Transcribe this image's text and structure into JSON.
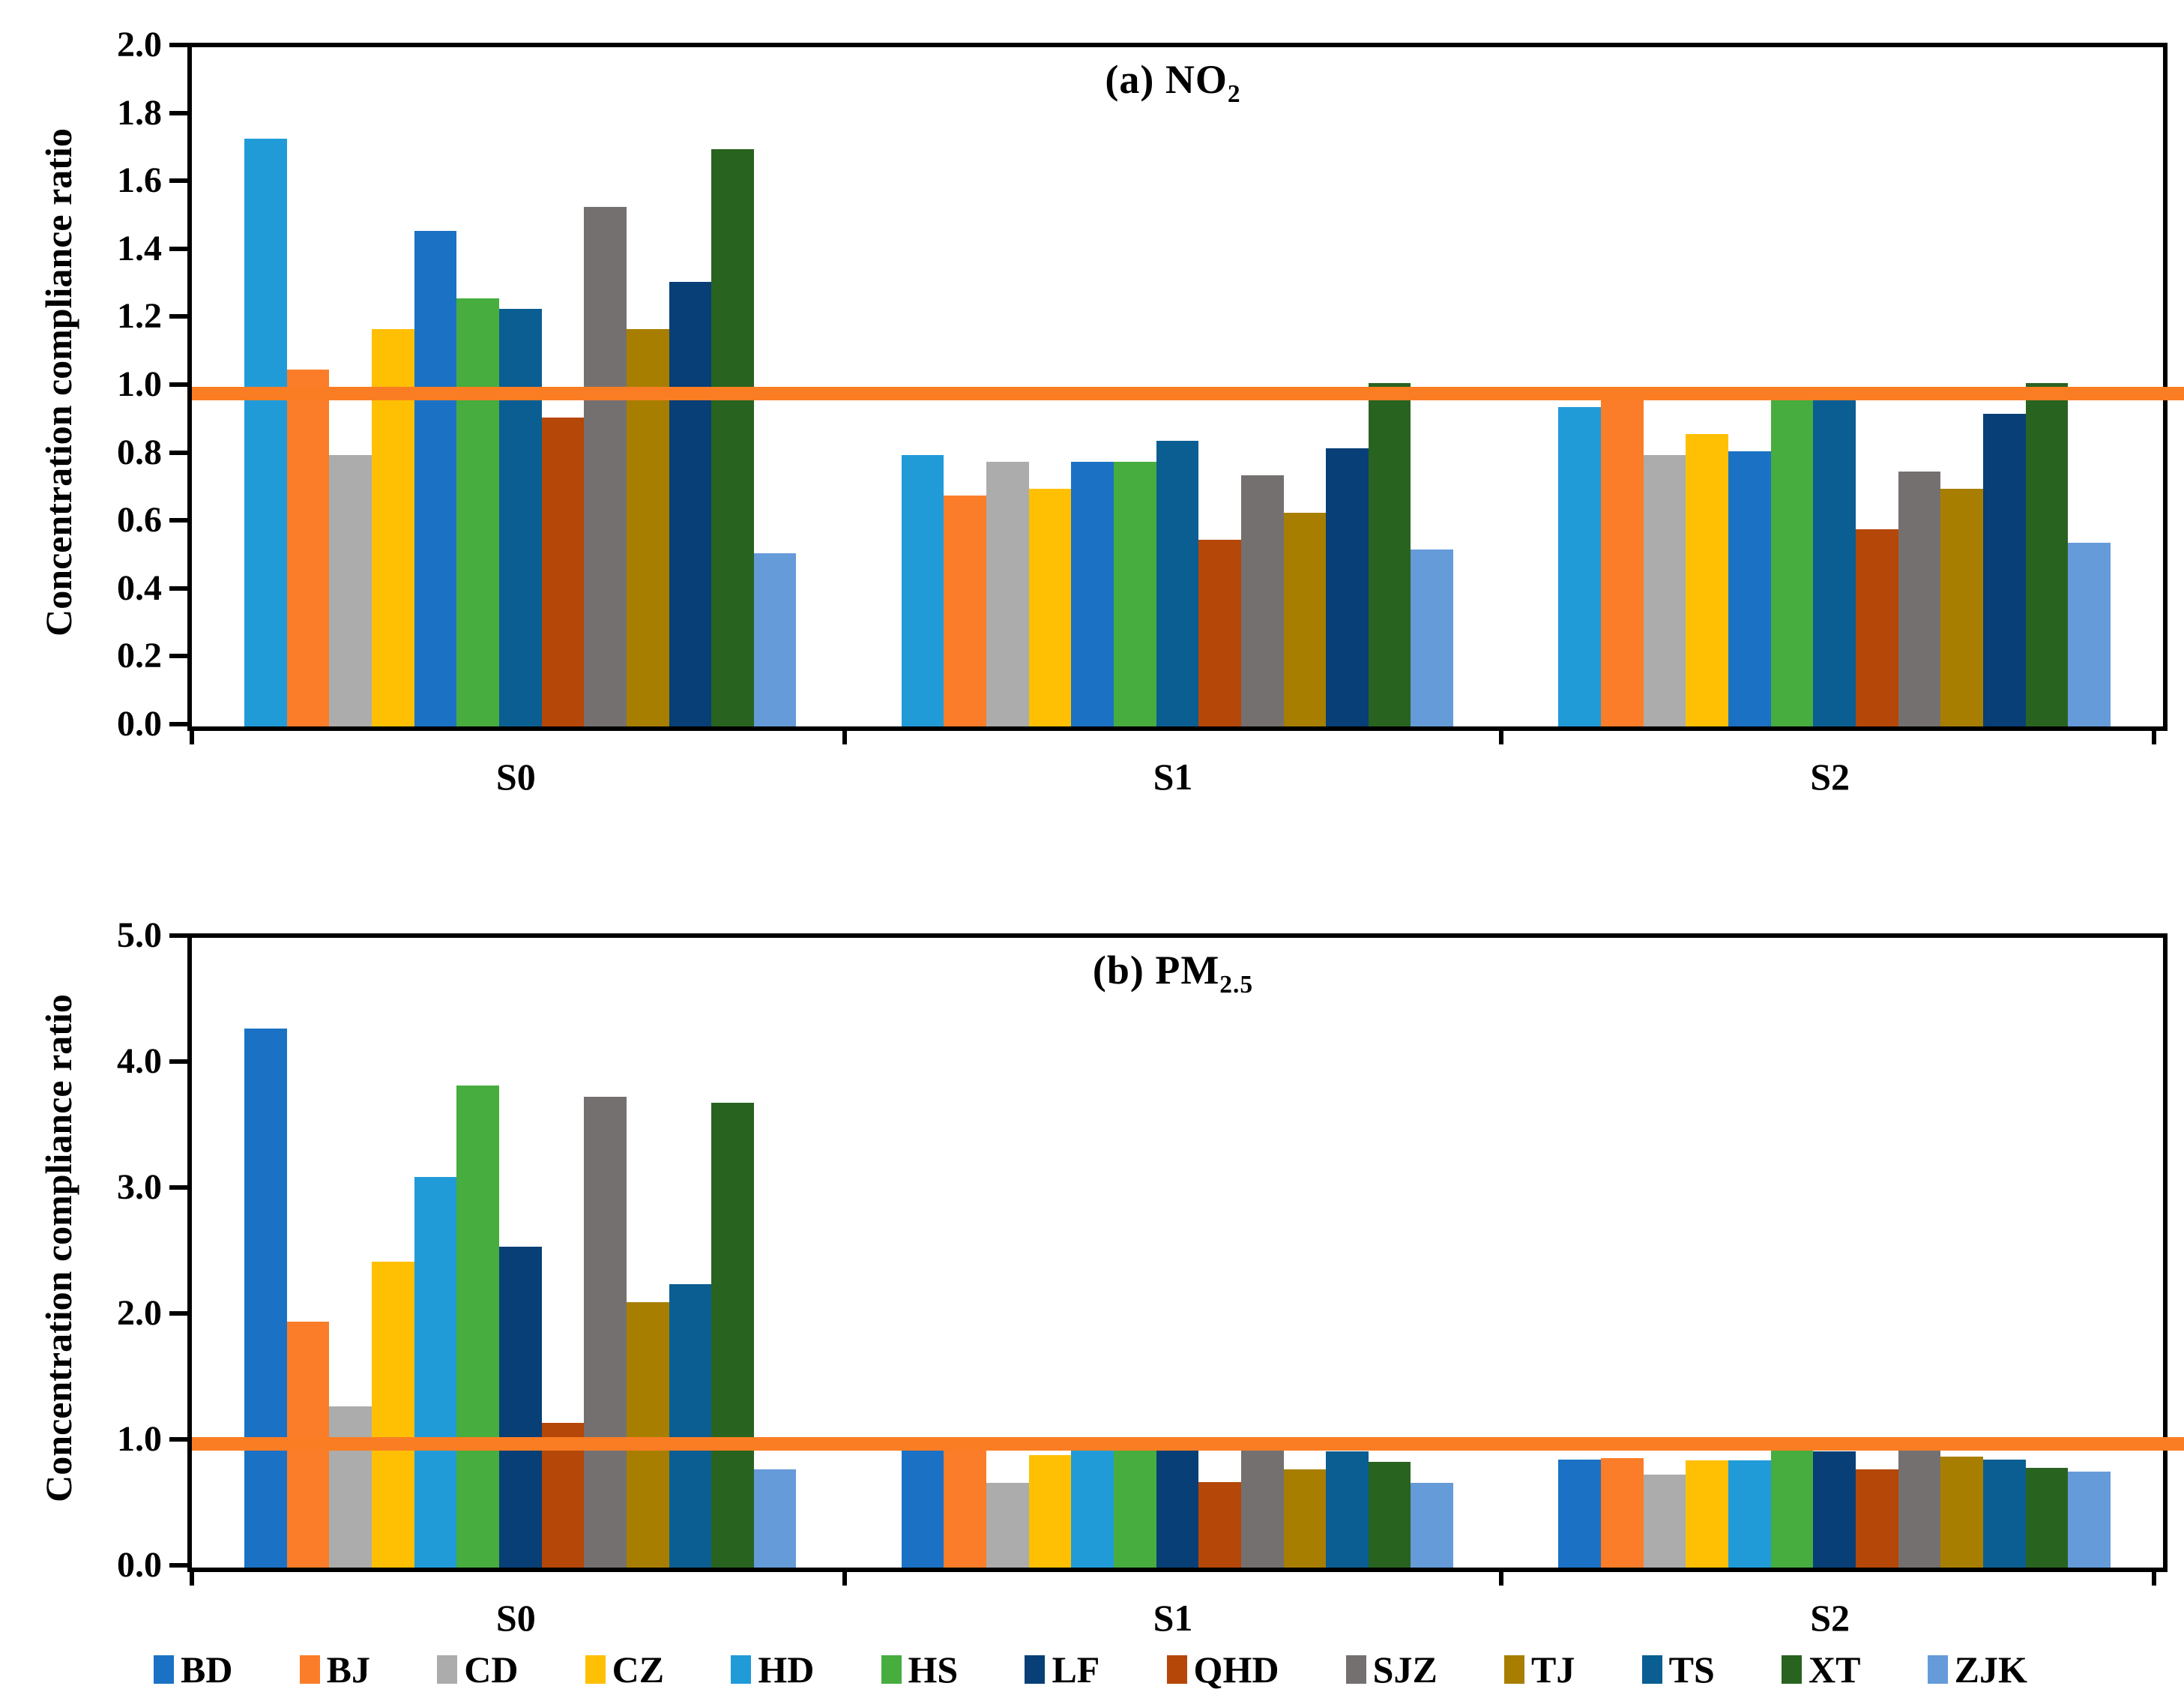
{
  "figure": {
    "background": "#ffffff",
    "y_axis_label": "Concentration compliance ratio",
    "reference_line": {
      "value": 0.98,
      "color": "#FB7D23"
    }
  },
  "legend": [
    {
      "city": "BD",
      "label": "BD",
      "color": "#1B72C4"
    },
    {
      "city": "BJ",
      "label": "BJ",
      "color": "#FB7D29"
    },
    {
      "city": "CD",
      "label": "CD",
      "color": "#ACACAC"
    },
    {
      "city": "CZ",
      "label": "CZ",
      "color": "#FFC003"
    },
    {
      "city": "HD",
      "label": "HD",
      "color": "#209BD8"
    },
    {
      "city": "HS",
      "label": "HS",
      "color": "#47AD3F"
    },
    {
      "city": "LF",
      "label": "LF",
      "color": "#073F76"
    },
    {
      "city": "QHD",
      "label": "QHD",
      "color": "#B54708"
    },
    {
      "city": "SJZ",
      "label": "SJZ",
      "color": "#757070"
    },
    {
      "city": "TJ",
      "label": "TJ",
      "color": "#A87E00"
    },
    {
      "city": "TS",
      "label": "TS",
      "color": "#0A5E92"
    },
    {
      "city": "XT",
      "label": "XT",
      "color": "#296320"
    },
    {
      "city": "ZJK",
      "label": "ZJK",
      "color": "#659BD9"
    }
  ],
  "chart_data": [
    {
      "type": "bar",
      "panel": "a",
      "title_prefix": "(a) NO",
      "title_sub": "2",
      "ylabel": "Concentration compliance ratio",
      "ylim": [
        0.0,
        2.0
      ],
      "ytick_labels": [
        "2.0",
        "1.8",
        "1.6",
        "1.4",
        "1.2",
        "1.0",
        "0.8",
        "0.6",
        "0.4",
        "0.2",
        "0.0"
      ],
      "categories": [
        "S0",
        "S1",
        "S2"
      ],
      "grid": false,
      "reference_line_value": 0.98,
      "bar_order": [
        "HD",
        "BJ",
        "CD",
        "CZ",
        "BD",
        "HS",
        "TS",
        "QHD",
        "SJZ",
        "TJ",
        "LF",
        "XT",
        "ZJK"
      ],
      "groups": [
        {
          "label": "S0",
          "values": [
            1.73,
            1.05,
            0.8,
            1.17,
            1.46,
            1.26,
            1.23,
            0.91,
            1.53,
            1.17,
            1.31,
            1.7,
            0.51
          ]
        },
        {
          "label": "S1",
          "values": [
            0.8,
            0.68,
            0.78,
            0.7,
            0.78,
            0.78,
            0.84,
            0.55,
            0.74,
            0.63,
            0.82,
            1.01,
            0.52
          ]
        },
        {
          "label": "S2",
          "values": [
            0.94,
            0.99,
            0.8,
            0.86,
            0.81,
            0.96,
            1.0,
            0.58,
            0.75,
            0.7,
            0.92,
            1.01,
            0.54
          ]
        }
      ]
    },
    {
      "type": "bar",
      "panel": "b",
      "title_prefix": "(b) PM",
      "title_sub": "2.5",
      "ylabel": "Concentration compliance ratio",
      "ylim": [
        0.0,
        5.0
      ],
      "ytick_labels": [
        "5.0",
        "4.0",
        "3.0",
        "2.0",
        "1.0",
        "0.0"
      ],
      "categories": [
        "S0",
        "S1",
        "S2"
      ],
      "grid": false,
      "reference_line_value": 0.98,
      "bar_order": [
        "BD",
        "BJ",
        "CD",
        "CZ",
        "HD",
        "HS",
        "LF",
        "QHD",
        "SJZ",
        "TJ",
        "TS",
        "XT",
        "ZJK"
      ],
      "groups": [
        {
          "label": "S0",
          "values": [
            4.28,
            1.95,
            1.28,
            2.43,
            3.1,
            3.83,
            2.55,
            1.15,
            3.74,
            2.11,
            2.25,
            3.69,
            0.78
          ]
        },
        {
          "label": "S1",
          "values": [
            0.97,
            1.0,
            0.67,
            0.89,
            0.94,
            1.0,
            1.0,
            0.68,
            1.01,
            0.78,
            0.92,
            0.84,
            0.67
          ]
        },
        {
          "label": "S2",
          "values": [
            0.86,
            0.87,
            0.74,
            0.85,
            0.85,
            0.93,
            0.92,
            0.78,
            0.93,
            0.88,
            0.86,
            0.79,
            0.76
          ]
        }
      ]
    }
  ]
}
